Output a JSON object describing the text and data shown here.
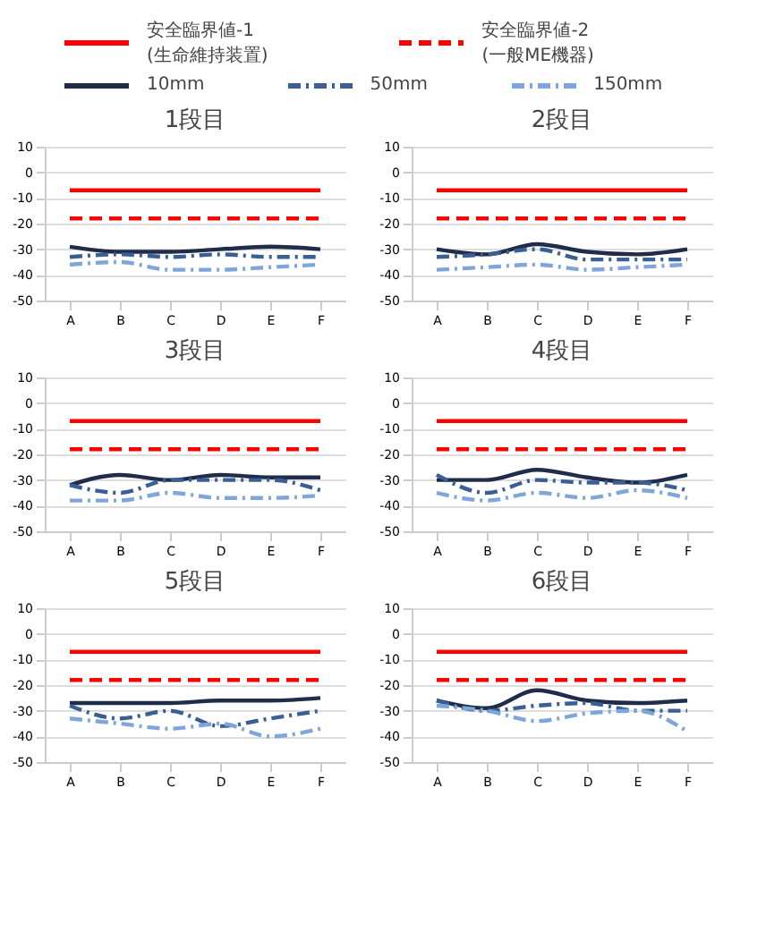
{
  "chart_data": [
    {
      "type": "line",
      "title": "1段目",
      "categories": [
        "A",
        "B",
        "C",
        "D",
        "E",
        "F"
      ],
      "ylim": [
        -50,
        10
      ],
      "yticks": [
        -50,
        -40,
        -30,
        -20,
        -10,
        0,
        10
      ],
      "grid": "y",
      "legend": "top",
      "series": [
        {
          "name": "安全臨界値-1\n(生命維持装置)",
          "color": "#ff0000",
          "line_style": "solid",
          "values": [
            -7,
            -7,
            -7,
            -7,
            -7,
            -7
          ]
        },
        {
          "name": "安全臨界値-2\n(一般ME機器)",
          "color": "#ff0000",
          "line_style": "dashed",
          "values": [
            -18,
            -18,
            -18,
            -18,
            -18,
            -18
          ]
        },
        {
          "name": "10mm",
          "color": "#1f2d4a",
          "line_style": "solid",
          "values": [
            -29,
            -31,
            -31,
            -30,
            -29,
            -30
          ]
        },
        {
          "name": "50mm",
          "color": "#3a5f95",
          "line_style": "dashdot",
          "values": [
            -33,
            -32,
            -33,
            -32,
            -33,
            -33
          ]
        },
        {
          "name": "150mm",
          "color": "#7ea6dc",
          "line_style": "dashdot",
          "values": [
            -36,
            -35,
            -38,
            -38,
            -37,
            -36
          ]
        }
      ]
    },
    {
      "type": "line",
      "title": "2段目",
      "categories": [
        "A",
        "B",
        "C",
        "D",
        "E",
        "F"
      ],
      "ylim": [
        -50,
        10
      ],
      "yticks": [
        -50,
        -40,
        -30,
        -20,
        -10,
        0,
        10
      ],
      "grid": "y",
      "series": [
        {
          "color": "#ff0000",
          "line_style": "solid",
          "values": [
            -7,
            -7,
            -7,
            -7,
            -7,
            -7
          ]
        },
        {
          "color": "#ff0000",
          "line_style": "dashed",
          "values": [
            -18,
            -18,
            -18,
            -18,
            -18,
            -18
          ]
        },
        {
          "color": "#1f2d4a",
          "line_style": "solid",
          "values": [
            -30,
            -32,
            -28,
            -31,
            -32,
            -30
          ]
        },
        {
          "color": "#3a5f95",
          "line_style": "dashdot",
          "values": [
            -33,
            -32,
            -30,
            -34,
            -34,
            -34
          ]
        },
        {
          "color": "#7ea6dc",
          "line_style": "dashdot",
          "values": [
            -38,
            -37,
            -36,
            -38,
            -37,
            -36
          ]
        }
      ]
    },
    {
      "type": "line",
      "title": "3段目",
      "categories": [
        "A",
        "B",
        "C",
        "D",
        "E",
        "F"
      ],
      "ylim": [
        -50,
        10
      ],
      "yticks": [
        -50,
        -40,
        -30,
        -20,
        -10,
        0,
        10
      ],
      "grid": "y",
      "series": [
        {
          "color": "#ff0000",
          "line_style": "solid",
          "values": [
            -7,
            -7,
            -7,
            -7,
            -7,
            -7
          ]
        },
        {
          "color": "#ff0000",
          "line_style": "dashed",
          "values": [
            -18,
            -18,
            -18,
            -18,
            -18,
            -18
          ]
        },
        {
          "color": "#1f2d4a",
          "line_style": "solid",
          "values": [
            -32,
            -28,
            -30,
            -28,
            -29,
            -29
          ]
        },
        {
          "color": "#3a5f95",
          "line_style": "dashdot",
          "values": [
            -32,
            -35,
            -30,
            -30,
            -30,
            -34
          ]
        },
        {
          "color": "#7ea6dc",
          "line_style": "dashdot",
          "values": [
            -38,
            -38,
            -35,
            -37,
            -37,
            -36
          ]
        }
      ]
    },
    {
      "type": "line",
      "title": "4段目",
      "categories": [
        "A",
        "B",
        "C",
        "D",
        "E",
        "F"
      ],
      "ylim": [
        -50,
        10
      ],
      "yticks": [
        -50,
        -40,
        -30,
        -20,
        -10,
        0,
        10
      ],
      "grid": "y",
      "series": [
        {
          "color": "#ff0000",
          "line_style": "solid",
          "values": [
            -7,
            -7,
            -7,
            -7,
            -7,
            -7
          ]
        },
        {
          "color": "#ff0000",
          "line_style": "dashed",
          "values": [
            -18,
            -18,
            -18,
            -18,
            -18,
            -18
          ]
        },
        {
          "color": "#1f2d4a",
          "line_style": "solid",
          "values": [
            -30,
            -30,
            -26,
            -29,
            -31,
            -28
          ]
        },
        {
          "color": "#3a5f95",
          "line_style": "dashdot",
          "values": [
            -28,
            -35,
            -30,
            -31,
            -31,
            -34
          ]
        },
        {
          "color": "#7ea6dc",
          "line_style": "dashdot",
          "values": [
            -35,
            -38,
            -35,
            -37,
            -34,
            -37
          ]
        }
      ]
    },
    {
      "type": "line",
      "title": "5段目",
      "categories": [
        "A",
        "B",
        "C",
        "D",
        "E",
        "F"
      ],
      "ylim": [
        -50,
        10
      ],
      "yticks": [
        -50,
        -40,
        -30,
        -20,
        -10,
        0,
        10
      ],
      "grid": "y",
      "series": [
        {
          "color": "#ff0000",
          "line_style": "solid",
          "values": [
            -7,
            -7,
            -7,
            -7,
            -7,
            -7
          ]
        },
        {
          "color": "#ff0000",
          "line_style": "dashed",
          "values": [
            -18,
            -18,
            -18,
            -18,
            -18,
            -18
          ]
        },
        {
          "color": "#1f2d4a",
          "line_style": "solid",
          "values": [
            -27,
            -27,
            -27,
            -26,
            -26,
            -25
          ]
        },
        {
          "color": "#3a5f95",
          "line_style": "dashdot",
          "values": [
            -28,
            -33,
            -30,
            -36,
            -33,
            -30
          ]
        },
        {
          "color": "#7ea6dc",
          "line_style": "dashdot",
          "values": [
            -33,
            -35,
            -37,
            -35,
            -40,
            -37
          ]
        }
      ]
    },
    {
      "type": "line",
      "title": "6段目",
      "categories": [
        "A",
        "B",
        "C",
        "D",
        "E",
        "F"
      ],
      "ylim": [
        -50,
        10
      ],
      "yticks": [
        -50,
        -40,
        -30,
        -20,
        -10,
        0,
        10
      ],
      "grid": "y",
      "series": [
        {
          "color": "#ff0000",
          "line_style": "solid",
          "values": [
            -7,
            -7,
            -7,
            -7,
            -7,
            -7
          ]
        },
        {
          "color": "#ff0000",
          "line_style": "dashed",
          "values": [
            -18,
            -18,
            -18,
            -18,
            -18,
            -18
          ]
        },
        {
          "color": "#1f2d4a",
          "line_style": "solid",
          "values": [
            -26,
            -29,
            -22,
            -26,
            -27,
            -26
          ]
        },
        {
          "color": "#3a5f95",
          "line_style": "dashdot",
          "values": [
            -26,
            -30,
            -28,
            -27,
            -30,
            -30
          ]
        },
        {
          "color": "#7ea6dc",
          "line_style": "dashdot",
          "values": [
            -28,
            -30,
            -34,
            -31,
            -30,
            -38
          ]
        }
      ]
    }
  ]
}
